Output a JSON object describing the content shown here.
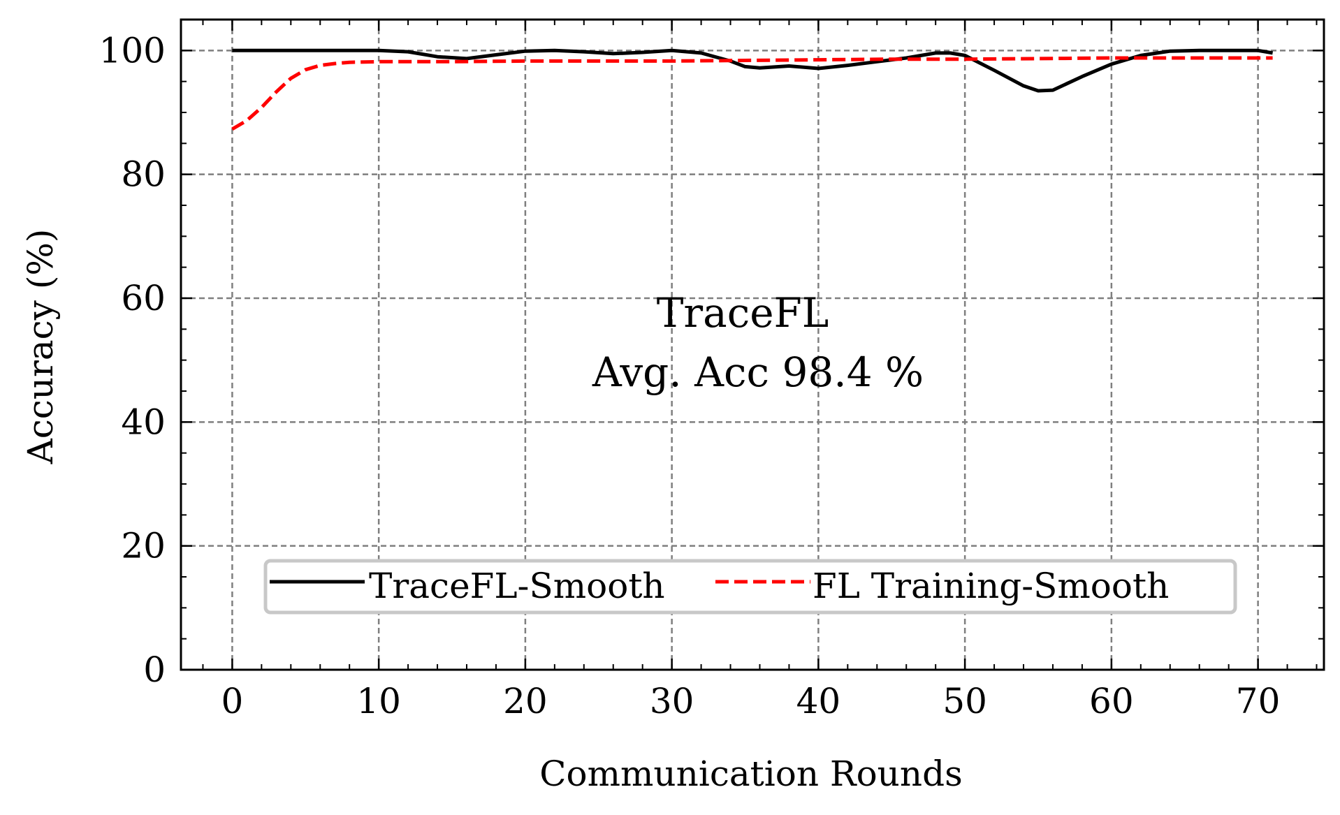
{
  "chart_data": {
    "type": "line",
    "xlabel": "Communication Rounds",
    "ylabel": "Accuracy (%)",
    "xlim": [
      -3.5,
      74.5
    ],
    "ylim": [
      0,
      105
    ],
    "xticks": [
      0,
      10,
      20,
      30,
      40,
      50,
      60,
      70
    ],
    "yticks": [
      0,
      20,
      40,
      60,
      80,
      100
    ],
    "grid": true,
    "legend_position": "lower center",
    "annotations": [
      "TraceFL",
      "Avg. Acc 98.4 %"
    ],
    "series": [
      {
        "name": "TraceFL-Smooth",
        "color": "#000000",
        "style": "solid",
        "x": [
          0,
          2,
          4,
          6,
          8,
          10,
          12,
          14,
          16,
          18,
          20,
          22,
          24,
          26,
          28,
          30,
          32,
          34,
          35,
          36,
          38,
          40,
          42,
          44,
          46,
          48,
          49,
          50,
          52,
          54,
          55,
          56,
          58,
          60,
          62,
          64,
          66,
          68,
          70,
          71
        ],
        "y": [
          100,
          100,
          100,
          100,
          100,
          100,
          99.8,
          99,
          98.7,
          99.3,
          99.9,
          100,
          99.8,
          99.5,
          99.7,
          100,
          99.6,
          98.3,
          97.4,
          97.2,
          97.5,
          97.1,
          97.6,
          98.2,
          98.8,
          99.6,
          99.6,
          99.2,
          96.8,
          94.3,
          93.5,
          93.6,
          95.8,
          97.8,
          99.2,
          99.9,
          100,
          100,
          100,
          99.6
        ]
      },
      {
        "name": "FL Training-Smooth",
        "color": "#ff0000",
        "style": "dashed",
        "x": [
          0,
          1,
          2,
          3,
          4,
          5,
          6,
          7,
          8,
          10,
          15,
          20,
          25,
          30,
          35,
          40,
          45,
          50,
          55,
          60,
          65,
          71
        ],
        "y": [
          87.3,
          88.7,
          90.8,
          93.3,
          95.5,
          96.9,
          97.6,
          97.9,
          98.1,
          98.2,
          98.2,
          98.3,
          98.3,
          98.3,
          98.4,
          98.5,
          98.6,
          98.6,
          98.7,
          98.8,
          98.8,
          98.8
        ]
      }
    ]
  }
}
